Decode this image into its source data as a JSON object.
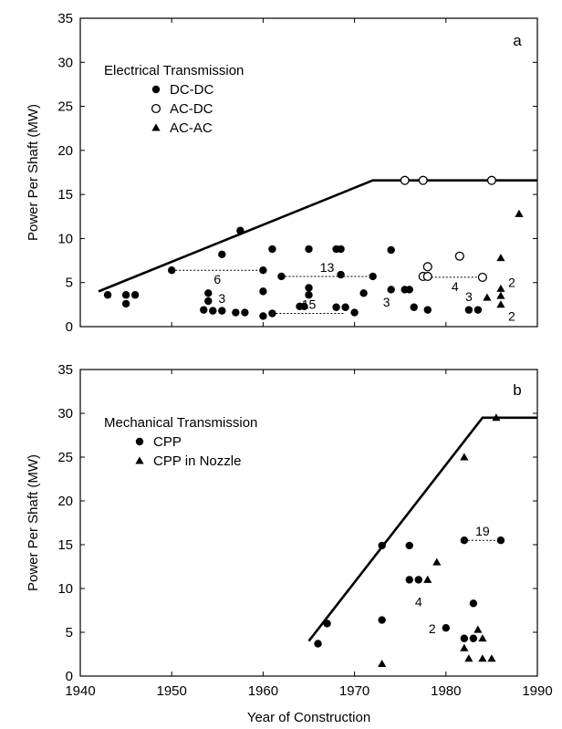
{
  "chart_data": [
    {
      "panel": "a",
      "type": "scatter",
      "ylabel": "Power Per Shaft (MW)",
      "xlim": [
        1940,
        1990
      ],
      "ylim": [
        0,
        35
      ],
      "yticks": [
        0,
        5,
        10,
        15,
        20,
        25,
        30,
        35
      ],
      "legend": {
        "title": "Electrical Transmission",
        "placement": "upper-left",
        "entries": [
          "DC-DC",
          "AC-DC",
          "AC-AC"
        ]
      },
      "series": [
        {
          "name": "DC-DC",
          "marker": "filled-circle",
          "points": [
            [
              1943,
              3.6
            ],
            [
              1945,
              3.6
            ],
            [
              1945,
              2.6
            ],
            [
              1946,
              3.6
            ],
            [
              1950,
              6.4
            ],
            [
              1953.5,
              1.9
            ],
            [
              1954,
              2.9
            ],
            [
              1954,
              3.8
            ],
            [
              1954.5,
              1.8
            ],
            [
              1955.5,
              1.8
            ],
            [
              1955.5,
              8.2
            ],
            [
              1957,
              1.6
            ],
            [
              1957.5,
              10.9
            ],
            [
              1958,
              1.6
            ],
            [
              1960,
              1.2
            ],
            [
              1960,
              4.0
            ],
            [
              1960,
              6.4
            ],
            [
              1961,
              1.5
            ],
            [
              1961,
              8.8
            ],
            [
              1962,
              5.7
            ],
            [
              1964,
              2.3
            ],
            [
              1964.5,
              2.3
            ],
            [
              1965,
              3.6
            ],
            [
              1965,
              4.4
            ],
            [
              1965,
              8.8
            ],
            [
              1968,
              2.2
            ],
            [
              1968,
              8.8
            ],
            [
              1968.5,
              5.9
            ],
            [
              1968.5,
              8.8
            ],
            [
              1969,
              2.2
            ],
            [
              1970,
              1.6
            ],
            [
              1971,
              3.8
            ],
            [
              1972,
              5.7
            ],
            [
              1974,
              4.2
            ],
            [
              1974,
              8.7
            ],
            [
              1975.5,
              4.2
            ],
            [
              1976,
              4.2
            ],
            [
              1976.5,
              2.2
            ],
            [
              1978,
              1.9
            ],
            [
              1982.5,
              1.9
            ],
            [
              1983.5,
              1.9
            ]
          ]
        },
        {
          "name": "AC-DC",
          "marker": "open-circle",
          "points": [
            [
              1975.5,
              16.6
            ],
            [
              1977.5,
              16.6
            ],
            [
              1985,
              16.6
            ],
            [
              1977.5,
              5.7
            ],
            [
              1978,
              5.7
            ],
            [
              1978,
              6.8
            ],
            [
              1981.5,
              8.0
            ],
            [
              1984,
              5.6
            ]
          ]
        },
        {
          "name": "AC-AC",
          "marker": "filled-triangle",
          "points": [
            [
              1984.5,
              3.3
            ],
            [
              1986,
              2.5
            ],
            [
              1986,
              3.5
            ],
            [
              1986,
              4.3
            ],
            [
              1986,
              7.8
            ],
            [
              1988,
              12.8
            ]
          ]
        }
      ],
      "trend_line": [
        [
          1942,
          4.0
        ],
        [
          1972,
          16.6
        ],
        [
          1990,
          16.6
        ]
      ],
      "ranges": [
        {
          "from": [
            1950,
            6.4
          ],
          "to": [
            1960,
            6.4
          ],
          "label": "6"
        },
        {
          "from": [
            1962,
            5.7
          ],
          "to": [
            1972,
            5.7
          ],
          "label": "13"
        },
        {
          "from": [
            1961,
            1.5
          ],
          "to": [
            1969,
            1.5
          ],
          "label": "15"
        },
        {
          "from": [
            1978,
            5.6
          ],
          "to": [
            1984,
            5.6
          ],
          "label": "4"
        }
      ],
      "annotations": [
        {
          "at": [
            1955.5,
            3.2
          ],
          "label": "3"
        },
        {
          "at": [
            1973.5,
            2.8
          ],
          "label": "3"
        },
        {
          "at": [
            1982.5,
            3.4
          ],
          "label": "3"
        },
        {
          "at": [
            1987.2,
            5.0
          ],
          "label": "2"
        },
        {
          "at": [
            1987.2,
            1.2
          ],
          "label": "2"
        }
      ]
    },
    {
      "panel": "b",
      "type": "scatter",
      "xlabel": "Year of Construction",
      "ylabel": "Power Per Shaft (MW)",
      "xlim": [
        1940,
        1990
      ],
      "ylim": [
        0,
        35
      ],
      "xticks": [
        1940,
        1950,
        1960,
        1970,
        1980,
        1990
      ],
      "yticks": [
        0,
        5,
        10,
        15,
        20,
        25,
        30,
        35
      ],
      "legend": {
        "title": "Mechanical Transmission",
        "placement": "upper-left",
        "entries": [
          "CPP",
          "CPP in Nozzle"
        ]
      },
      "series": [
        {
          "name": "CPP",
          "marker": "filled-circle",
          "points": [
            [
              1966,
              3.7
            ],
            [
              1967,
              6.0
            ],
            [
              1973,
              14.9
            ],
            [
              1973,
              6.4
            ],
            [
              1976,
              11.0
            ],
            [
              1976,
              14.9
            ],
            [
              1977,
              11.0
            ],
            [
              1980,
              5.5
            ],
            [
              1982,
              4.3
            ],
            [
              1982,
              15.5
            ],
            [
              1983,
              4.3
            ],
            [
              1983,
              8.3
            ],
            [
              1986,
              15.5
            ]
          ]
        },
        {
          "name": "CPP in Nozzle",
          "marker": "filled-triangle",
          "points": [
            [
              1973,
              1.4
            ],
            [
              1978,
              11.0
            ],
            [
              1979,
              13.0
            ],
            [
              1982,
              25.0
            ],
            [
              1982,
              3.2
            ],
            [
              1982.5,
              2.0
            ],
            [
              1983.5,
              5.3
            ],
            [
              1984,
              4.3
            ],
            [
              1984,
              2.0
            ],
            [
              1985,
              2.0
            ],
            [
              1985.5,
              29.5
            ]
          ]
        }
      ],
      "trend_line": [
        [
          1965,
          4.0
        ],
        [
          1984,
          29.5
        ],
        [
          1990,
          29.5
        ]
      ],
      "ranges": [
        {
          "from": [
            1982,
            15.5
          ],
          "to": [
            1986,
            15.5
          ],
          "label": "19"
        }
      ],
      "annotations": [
        {
          "at": [
            1977,
            8.5
          ],
          "label": "4"
        },
        {
          "at": [
            1978.5,
            5.4
          ],
          "label": "2"
        }
      ]
    }
  ]
}
